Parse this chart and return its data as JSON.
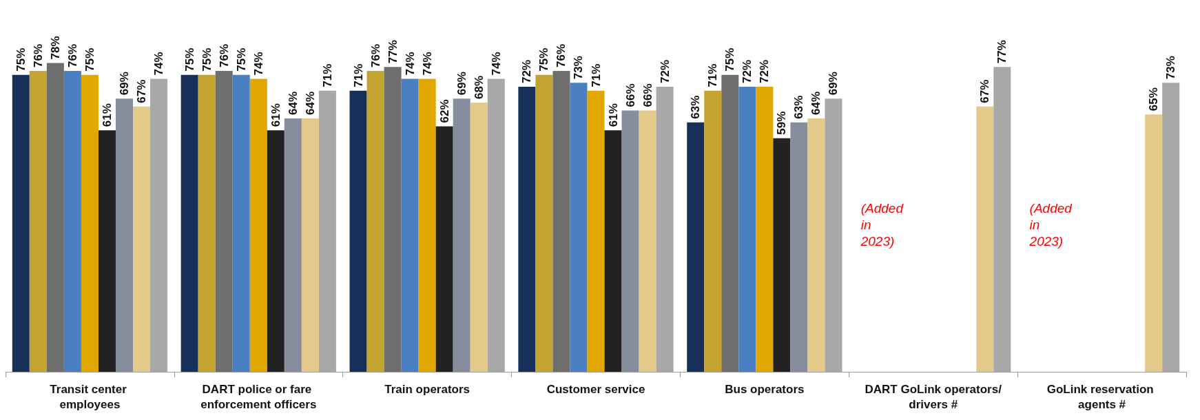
{
  "chart_data": {
    "type": "bar",
    "categories": [
      "Transit center employees",
      "DART police or fare enforcement officers",
      "Train operators",
      "Customer service",
      "Bus operators",
      "DART GoLink operators/drivers #",
      "GoLink reservation agents #"
    ],
    "series": [
      {
        "color": "#17305a",
        "values": [
          75,
          75,
          71,
          72,
          63,
          null,
          null
        ],
        "value_labels": [
          "75%",
          "75%",
          "71%",
          "72%",
          "63%",
          null,
          null
        ]
      },
      {
        "color": "#c4a430",
        "values": [
          76,
          75,
          76,
          75,
          71,
          null,
          null
        ],
        "value_labels": [
          "76%",
          "75%",
          "76%",
          "75%",
          "71%",
          null,
          null
        ]
      },
      {
        "color": "#6e6e6e",
        "values": [
          78,
          76,
          77,
          76,
          75,
          null,
          null
        ],
        "value_labels": [
          "78%",
          "76%",
          "77%",
          "76%",
          "75%",
          null,
          null
        ]
      },
      {
        "color": "#4a7fc1",
        "values": [
          76,
          75,
          74,
          73,
          72,
          null,
          null
        ],
        "value_labels": [
          "76%",
          "75%",
          "74%",
          "73%",
          "72%",
          null,
          null
        ]
      },
      {
        "color": "#e0a800",
        "values": [
          75,
          74,
          74,
          71,
          72,
          null,
          null
        ],
        "value_labels": [
          "75%",
          "74%",
          "74%",
          "71%",
          "72%",
          null,
          null
        ]
      },
      {
        "color": "#222222",
        "values": [
          61,
          61,
          62,
          61,
          59,
          null,
          null
        ],
        "value_labels": [
          "61%",
          "61%",
          "62%",
          "61%",
          "59%",
          null,
          null
        ]
      },
      {
        "color": "#868d9c",
        "values": [
          69,
          64,
          69,
          66,
          63,
          null,
          null
        ],
        "value_labels": [
          "69%",
          "64%",
          "69%",
          "66%",
          "63%",
          null,
          null
        ]
      },
      {
        "color": "#e3c98a",
        "values": [
          67,
          64,
          68,
          66,
          64,
          67,
          65
        ],
        "value_labels": [
          "67%",
          "64%",
          "68%",
          "66%",
          "64%",
          "67%",
          "65%"
        ]
      },
      {
        "color": "#a8a8a8",
        "values": [
          74,
          71,
          74,
          72,
          69,
          77,
          73
        ],
        "value_labels": [
          "74%",
          "71%",
          "74%",
          "72%",
          "69%",
          "77%",
          "73%"
        ]
      }
    ],
    "annotations": [
      "(Added in 2023)",
      "(Added in 2023)"
    ]
  }
}
